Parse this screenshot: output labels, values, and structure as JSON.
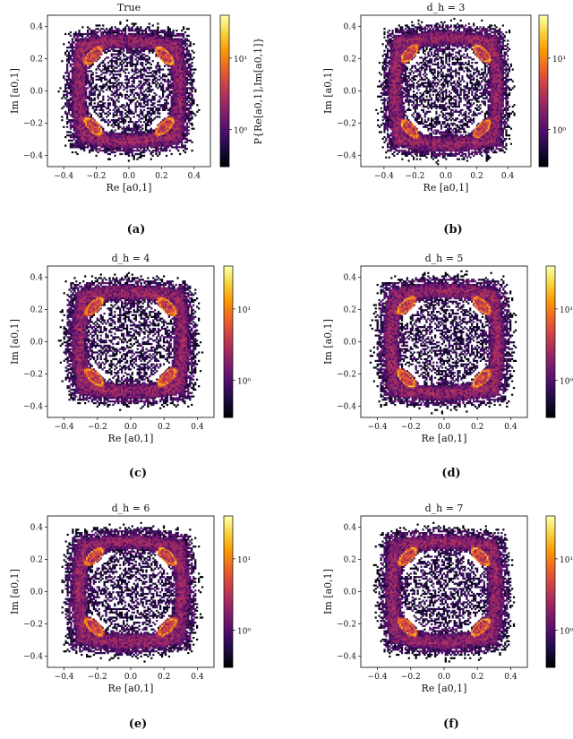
{
  "figure": {
    "colormap": [
      "#000004",
      "#1b0c41",
      "#4a0c6b",
      "#781c6d",
      "#a52c60",
      "#cf4446",
      "#ed6925",
      "#fb9b06",
      "#f7d13d",
      "#fcffa4"
    ],
    "background": "#ffffff"
  },
  "chart_data": [
    {
      "type": "heatmap",
      "caption": "(a)",
      "title": "True",
      "xlabel": "Re [a0,1]",
      "ylabel": "Im [a0,1]",
      "colorbar_label": "P{Re[a0,1],Im[a0,1]}",
      "xlim": [
        -0.5,
        0.5
      ],
      "ylim": [
        -0.47,
        0.47
      ],
      "x_ticks": [
        -0.4,
        -0.2,
        0.0,
        0.2,
        0.4
      ],
      "x_tick_labels": [
        "−0.4",
        "−0.2",
        "0.0",
        "0.2",
        "0.4"
      ],
      "y_ticks": [
        0.4,
        0.2,
        0.0,
        -0.2,
        -0.4
      ],
      "y_tick_labels": [
        "0.4",
        "0.2",
        "0.0",
        "−0.2",
        "−0.4"
      ],
      "colorbar_scale": "log",
      "colorbar_range": [
        0.3,
        40
      ],
      "colorbar_ticks": [
        1,
        10
      ],
      "colorbar_tick_labels": [
        "10⁰",
        "10¹"
      ],
      "ring_radius": 0.31,
      "lobe_angles_deg": [
        45,
        135,
        225,
        315
      ],
      "lobe_peak_count": 40,
      "seed": 11
    },
    {
      "type": "heatmap",
      "caption": "(b)",
      "title": "d_h = 3",
      "xlabel": "Re [a0,1]",
      "ylabel": "Im [a0,1]",
      "xlim": [
        -0.55,
        0.55
      ],
      "ylim": [
        -0.47,
        0.47
      ],
      "x_ticks": [
        -0.4,
        -0.2,
        0.0,
        0.2,
        0.4
      ],
      "x_tick_labels": [
        "−0.4",
        "−0.2",
        "0.0",
        "0.2",
        "0.4"
      ],
      "y_ticks": [
        0.4,
        0.2,
        0.0,
        -0.2,
        -0.4
      ],
      "y_tick_labels": [
        "0.4",
        "0.2",
        "0.0",
        "−0.2",
        "−0.4"
      ],
      "colorbar_scale": "log",
      "colorbar_range": [
        0.3,
        40
      ],
      "colorbar_ticks": [
        1,
        10
      ],
      "colorbar_tick_labels": [
        "10⁰",
        "10¹"
      ],
      "ring_radius": 0.33,
      "lobe_angles_deg": [
        45,
        135,
        225,
        315
      ],
      "lobe_peak_count": 40,
      "seed": 23
    },
    {
      "type": "heatmap",
      "caption": "(c)",
      "title": "d_h = 4",
      "xlabel": "Re [a0,1]",
      "ylabel": "Im [a0,1]",
      "xlim": [
        -0.5,
        0.5
      ],
      "ylim": [
        -0.47,
        0.47
      ],
      "x_ticks": [
        -0.4,
        -0.2,
        0.0,
        0.2,
        0.4
      ],
      "x_tick_labels": [
        "−0.4",
        "−0.2",
        "0.0",
        "0.2",
        "0.4"
      ],
      "y_ticks": [
        0.4,
        0.2,
        0.0,
        -0.2,
        -0.4
      ],
      "y_tick_labels": [
        "0.4",
        "0.2",
        "0.0",
        "−0.2",
        "−0.4"
      ],
      "colorbar_scale": "log",
      "colorbar_range": [
        0.3,
        40
      ],
      "colorbar_ticks": [
        1,
        10
      ],
      "colorbar_tick_labels": [
        "10⁰",
        "10¹"
      ],
      "ring_radius": 0.31,
      "lobe_angles_deg": [
        45,
        135,
        225,
        315
      ],
      "lobe_peak_count": 40,
      "seed": 37
    },
    {
      "type": "heatmap",
      "caption": "(d)",
      "title": "d_h = 5",
      "xlabel": "Re [a0,1]",
      "ylabel": "Im [a0,1]",
      "xlim": [
        -0.5,
        0.5
      ],
      "ylim": [
        -0.47,
        0.47
      ],
      "x_ticks": [
        -0.4,
        -0.2,
        0.0,
        0.2,
        0.4
      ],
      "x_tick_labels": [
        "−0.4",
        "−0.2",
        "0.0",
        "0.2",
        "0.4"
      ],
      "y_ticks": [
        0.4,
        0.2,
        0.0,
        -0.2,
        -0.4
      ],
      "y_tick_labels": [
        "0.4",
        "0.2",
        "0.0",
        "−0.2",
        "−0.4"
      ],
      "colorbar_scale": "log",
      "colorbar_range": [
        0.3,
        40
      ],
      "colorbar_ticks": [
        1,
        10
      ],
      "colorbar_tick_labels": [
        "10⁰",
        "10¹"
      ],
      "ring_radius": 0.32,
      "lobe_angles_deg": [
        45,
        135,
        225,
        315
      ],
      "lobe_peak_count": 40,
      "seed": 41
    },
    {
      "type": "heatmap",
      "caption": "(e)",
      "title": "d_h = 6",
      "xlabel": "Re [a0,1]",
      "ylabel": "Im [a0,1]",
      "xlim": [
        -0.5,
        0.5
      ],
      "ylim": [
        -0.47,
        0.47
      ],
      "x_ticks": [
        -0.4,
        -0.2,
        0.0,
        0.2,
        0.4
      ],
      "x_tick_labels": [
        "−0.4",
        "−0.2",
        "0.0",
        "0.2",
        "0.4"
      ],
      "y_ticks": [
        0.4,
        0.2,
        0.0,
        -0.2,
        -0.4
      ],
      "y_tick_labels": [
        "0.4",
        "0.2",
        "0.0",
        "−0.2",
        "−0.4"
      ],
      "colorbar_scale": "log",
      "colorbar_range": [
        0.3,
        40
      ],
      "colorbar_ticks": [
        1,
        10
      ],
      "colorbar_tick_labels": [
        "10⁰",
        "10¹"
      ],
      "ring_radius": 0.31,
      "lobe_angles_deg": [
        45,
        135,
        225,
        315
      ],
      "lobe_peak_count": 40,
      "seed": 53
    },
    {
      "type": "heatmap",
      "caption": "(f)",
      "title": "d_h = 7",
      "xlabel": "Re [a0,1]",
      "ylabel": "Im [a0,1]",
      "xlim": [
        -0.5,
        0.5
      ],
      "ylim": [
        -0.47,
        0.47
      ],
      "x_ticks": [
        -0.4,
        -0.2,
        0.0,
        0.2,
        0.4
      ],
      "x_tick_labels": [
        "−0.4",
        "−0.2",
        "0.0",
        "0.2",
        "0.4"
      ],
      "y_ticks": [
        0.4,
        0.2,
        0.0,
        -0.2,
        -0.4
      ],
      "y_tick_labels": [
        "0.4",
        "0.2",
        "0.0",
        "−0.2",
        "−0.4"
      ],
      "colorbar_scale": "log",
      "colorbar_range": [
        0.3,
        40
      ],
      "colorbar_ticks": [
        1,
        10
      ],
      "colorbar_tick_labels": [
        "10⁰",
        "10¹"
      ],
      "ring_radius": 0.31,
      "lobe_angles_deg": [
        45,
        135,
        225,
        315
      ],
      "lobe_peak_count": 40,
      "seed": 67
    }
  ]
}
